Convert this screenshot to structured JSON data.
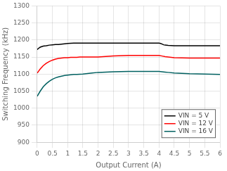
{
  "chart_data": {
    "type": "line",
    "xlabel": "Output Current (A)",
    "ylabel": "Switching Frequency (kHz)",
    "xlim": [
      0,
      6
    ],
    "xticks": [
      0,
      0.5,
      1,
      1.5,
      2,
      2.5,
      3,
      3.5,
      4,
      4.5,
      5,
      5.5,
      6
    ],
    "ylim": [
      900,
      1300
    ],
    "yticks": [
      900,
      950,
      1000,
      1050,
      1100,
      1150,
      1200,
      1250,
      1300
    ],
    "grid": true,
    "legend": "lower right",
    "series": [
      {
        "name": "VIN = 5 V",
        "color": "#000000",
        "x": [
          0.0,
          0.05,
          0.1,
          0.2,
          0.3,
          0.4,
          0.5,
          0.6,
          0.7,
          0.8,
          0.9,
          1.0,
          1.2,
          1.5,
          2.0,
          2.5,
          3.0,
          3.5,
          4.0,
          4.05,
          4.1,
          4.15,
          4.2,
          4.3,
          4.5,
          5.0,
          5.5,
          6.0
        ],
        "values": [
          1172,
          1176,
          1179,
          1182,
          1183,
          1185,
          1186,
          1187,
          1187,
          1188,
          1189,
          1190,
          1191,
          1191,
          1191,
          1191,
          1191,
          1191,
          1191,
          1190,
          1188,
          1186,
          1185,
          1184,
          1183,
          1183,
          1183,
          1183
        ]
      },
      {
        "name": "VIN = 12 V",
        "color": "#ff0000",
        "x": [
          0.0,
          0.1,
          0.2,
          0.3,
          0.4,
          0.5,
          0.6,
          0.7,
          0.8,
          0.9,
          1.0,
          1.1,
          1.2,
          1.3,
          1.4,
          1.5,
          1.6,
          1.8,
          2.0,
          2.5,
          3.0,
          3.5,
          4.0,
          4.1,
          4.2,
          4.3,
          4.5,
          5.0,
          5.5,
          6.0
        ],
        "values": [
          1103,
          1115,
          1125,
          1132,
          1137,
          1141,
          1144,
          1146,
          1147,
          1148,
          1148,
          1149,
          1149,
          1149,
          1150,
          1150,
          1150,
          1150,
          1150,
          1153,
          1155,
          1155,
          1155,
          1153,
          1151,
          1150,
          1148,
          1147,
          1147,
          1147
        ]
      },
      {
        "name": "VIN = 16 V",
        "color": "#006060",
        "x": [
          0.0,
          0.1,
          0.2,
          0.3,
          0.4,
          0.5,
          0.6,
          0.7,
          0.8,
          0.9,
          1.0,
          1.1,
          1.2,
          1.3,
          1.5,
          1.8,
          2.0,
          2.5,
          3.0,
          3.5,
          4.0,
          4.1,
          4.2,
          4.3,
          4.5,
          5.0,
          5.5,
          6.0
        ],
        "values": [
          1035,
          1050,
          1063,
          1072,
          1079,
          1085,
          1089,
          1092,
          1094,
          1096,
          1097,
          1098,
          1099,
          1099,
          1100,
          1103,
          1105,
          1107,
          1108,
          1108,
          1108,
          1107,
          1106,
          1105,
          1103,
          1101,
          1100,
          1099
        ]
      }
    ]
  }
}
